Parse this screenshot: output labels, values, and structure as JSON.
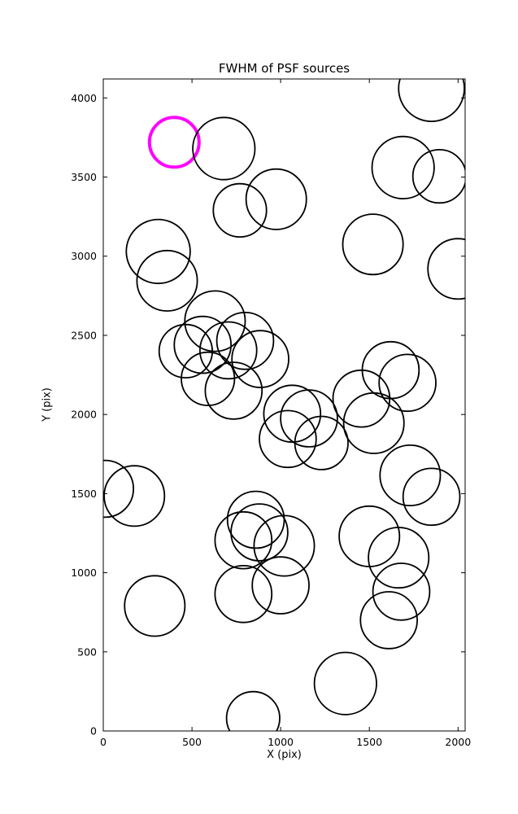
{
  "chart_data": {
    "type": "scatter",
    "title": "FWHM of PSF sources",
    "xlabel": "X (pix)",
    "ylabel": "Y (pix)",
    "xlim": [
      0,
      2040
    ],
    "ylim": [
      0,
      4120
    ],
    "xticks": [
      0,
      500,
      1000,
      1500,
      2000
    ],
    "yticks": [
      0,
      500,
      1000,
      1500,
      2000,
      2500,
      3000,
      3500,
      4000
    ],
    "grid": false,
    "legend_position": "none",
    "marker_color": "#000000",
    "highlight_color": "#FF00FF",
    "marker_stroke_width": 1.8,
    "highlight_stroke_width": 4,
    "circles": [
      {
        "x": 400,
        "y": 3720,
        "r": 140,
        "highlight": true
      },
      {
        "x": 680,
        "y": 3680,
        "r": 175,
        "highlight": false
      },
      {
        "x": 975,
        "y": 3360,
        "r": 170,
        "highlight": false
      },
      {
        "x": 770,
        "y": 3290,
        "r": 150,
        "highlight": false
      },
      {
        "x": 1690,
        "y": 3560,
        "r": 175,
        "highlight": false
      },
      {
        "x": 1895,
        "y": 3505,
        "r": 150,
        "highlight": false
      },
      {
        "x": 1850,
        "y": 4060,
        "r": 185,
        "highlight": false
      },
      {
        "x": 310,
        "y": 3030,
        "r": 180,
        "highlight": false
      },
      {
        "x": 360,
        "y": 2845,
        "r": 170,
        "highlight": false
      },
      {
        "x": 1520,
        "y": 3075,
        "r": 170,
        "highlight": false
      },
      {
        "x": 2000,
        "y": 2920,
        "r": 170,
        "highlight": false
      },
      {
        "x": 630,
        "y": 2590,
        "r": 170,
        "highlight": false
      },
      {
        "x": 560,
        "y": 2440,
        "r": 160,
        "highlight": false
      },
      {
        "x": 465,
        "y": 2400,
        "r": 150,
        "highlight": false
      },
      {
        "x": 705,
        "y": 2405,
        "r": 160,
        "highlight": false
      },
      {
        "x": 800,
        "y": 2465,
        "r": 160,
        "highlight": false
      },
      {
        "x": 885,
        "y": 2350,
        "r": 160,
        "highlight": false
      },
      {
        "x": 590,
        "y": 2225,
        "r": 150,
        "highlight": false
      },
      {
        "x": 735,
        "y": 2150,
        "r": 160,
        "highlight": false
      },
      {
        "x": 1065,
        "y": 2005,
        "r": 160,
        "highlight": false
      },
      {
        "x": 1160,
        "y": 1975,
        "r": 160,
        "highlight": false
      },
      {
        "x": 1040,
        "y": 1845,
        "r": 160,
        "highlight": false
      },
      {
        "x": 1230,
        "y": 1820,
        "r": 150,
        "highlight": false
      },
      {
        "x": 1455,
        "y": 2100,
        "r": 160,
        "highlight": false
      },
      {
        "x": 1620,
        "y": 2280,
        "r": 160,
        "highlight": false
      },
      {
        "x": 1715,
        "y": 2200,
        "r": 160,
        "highlight": false
      },
      {
        "x": 1525,
        "y": 1945,
        "r": 170,
        "highlight": false
      },
      {
        "x": 1730,
        "y": 1615,
        "r": 170,
        "highlight": false
      },
      {
        "x": 1850,
        "y": 1480,
        "r": 160,
        "highlight": false
      },
      {
        "x": 175,
        "y": 1485,
        "r": 170,
        "highlight": false
      },
      {
        "x": 10,
        "y": 1530,
        "r": 160,
        "highlight": false
      },
      {
        "x": 860,
        "y": 1335,
        "r": 160,
        "highlight": false
      },
      {
        "x": 880,
        "y": 1255,
        "r": 160,
        "highlight": false
      },
      {
        "x": 790,
        "y": 1205,
        "r": 160,
        "highlight": false
      },
      {
        "x": 1020,
        "y": 1170,
        "r": 170,
        "highlight": false
      },
      {
        "x": 1500,
        "y": 1230,
        "r": 170,
        "highlight": false
      },
      {
        "x": 1665,
        "y": 1095,
        "r": 170,
        "highlight": false
      },
      {
        "x": 790,
        "y": 865,
        "r": 160,
        "highlight": false
      },
      {
        "x": 1000,
        "y": 920,
        "r": 160,
        "highlight": false
      },
      {
        "x": 290,
        "y": 790,
        "r": 170,
        "highlight": false
      },
      {
        "x": 1680,
        "y": 880,
        "r": 160,
        "highlight": false
      },
      {
        "x": 1610,
        "y": 700,
        "r": 160,
        "highlight": false
      },
      {
        "x": 1365,
        "y": 300,
        "r": 175,
        "highlight": false
      },
      {
        "x": 845,
        "y": 80,
        "r": 150,
        "highlight": false
      }
    ]
  }
}
